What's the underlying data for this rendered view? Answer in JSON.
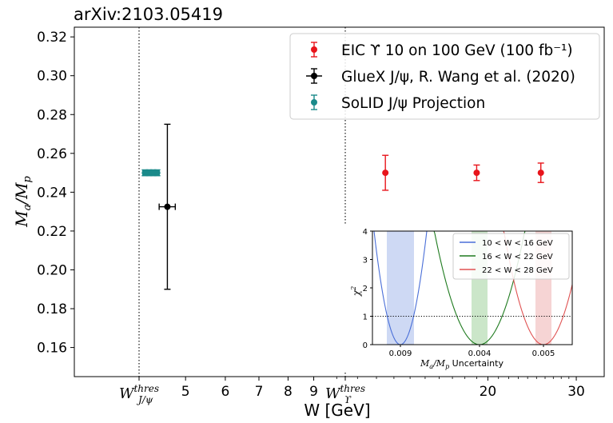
{
  "header": {
    "arxiv_id": "arXiv:2103.05419"
  },
  "chart_data": [
    {
      "type": "scatter",
      "title": "",
      "xlabel": "W [GeV]",
      "ylabel": "Ma/Mp",
      "xscale": "log",
      "ylim": [
        0.145,
        0.325
      ],
      "yticks": [
        0.16,
        0.18,
        0.2,
        0.22,
        0.24,
        0.26,
        0.28,
        0.3,
        0.32
      ],
      "xticks": [
        {
          "value": 4.04,
          "label": "W",
          "sup": "thres",
          "sub": "J/ψ"
        },
        {
          "value": 5,
          "label": "5"
        },
        {
          "value": 6,
          "label": "6"
        },
        {
          "value": 7,
          "label": "7"
        },
        {
          "value": 8,
          "label": "8"
        },
        {
          "value": 9,
          "label": "9"
        },
        {
          "value": 10.4,
          "label": "W",
          "sup": "thres",
          "sub": "ϒ"
        },
        {
          "value": 20,
          "label": "20"
        },
        {
          "value": 30,
          "label": "30"
        }
      ],
      "vlines": [
        {
          "x": 4.04,
          "style": "dotted",
          "name": "W thres J/psi"
        },
        {
          "x": 10.4,
          "style": "dotted",
          "name": "W thres Upsilon"
        }
      ],
      "legend_position": "top-right",
      "series": [
        {
          "name": "EIC ϒ 10 on 100 GeV (100 fb⁻¹)",
          "color": "#e8141b",
          "points": [
            {
              "x": 12.5,
              "y": 0.25,
              "yerr": 0.009
            },
            {
              "x": 19.0,
              "y": 0.25,
              "yerr": 0.004
            },
            {
              "x": 25.5,
              "y": 0.25,
              "yerr": 0.005
            }
          ]
        },
        {
          "name": "GlueX J/ψ, R. Wang et al. (2020)",
          "color": "#000000",
          "points": [
            {
              "x": 4.6,
              "y": 0.2325,
              "yerr": 0.0425,
              "xerr": 0.17
            }
          ]
        },
        {
          "name": "SoLID J/ψ Projection",
          "color": "#1a8a8a",
          "points": [
            {
              "x": 4.15,
              "y": 0.25,
              "yerr": 0.0015,
              "xerr": 0.04
            },
            {
              "x": 4.23,
              "y": 0.25,
              "yerr": 0.0015,
              "xerr": 0.04
            },
            {
              "x": 4.31,
              "y": 0.25,
              "yerr": 0.0015,
              "xerr": 0.04
            },
            {
              "x": 4.39,
              "y": 0.25,
              "yerr": 0.0015,
              "xerr": 0.04
            }
          ]
        }
      ]
    },
    {
      "type": "line",
      "title": "",
      "xlabel": "Ma/Mp Uncertainty",
      "ylabel": "χ²",
      "ylim": [
        0,
        4
      ],
      "yticks": [
        0,
        1,
        2,
        3,
        4
      ],
      "categories": [
        "0.009",
        "0.004",
        "0.005"
      ],
      "hline": {
        "y": 1,
        "style": "dotted"
      },
      "legend_position": "top-right",
      "series": [
        {
          "name": "10 < W < 16 GeV",
          "color": "#4a6fd8",
          "band_color": "#c9d5f3",
          "uncertainty": 0.009
        },
        {
          "name": "16 < W < 22 GeV",
          "color": "#1e7a1e",
          "band_color": "#c5e3c3",
          "uncertainty": 0.004
        },
        {
          "name": "22 < W < 28 GeV",
          "color": "#e05252",
          "band_color": "#f5cfcf",
          "uncertainty": 0.005
        }
      ]
    }
  ]
}
